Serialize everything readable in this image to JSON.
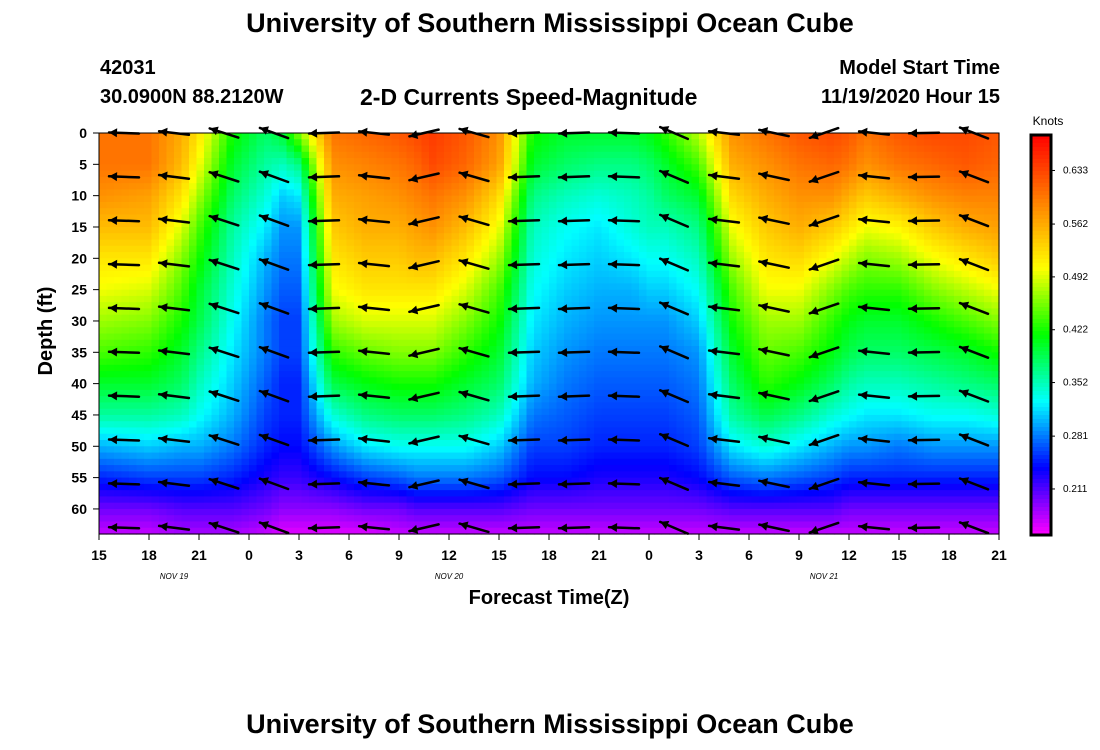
{
  "header": {
    "title": "University of Southern Mississippi Ocean Cube",
    "station_id": "42031",
    "coordinates": "30.0900N 88.2120W",
    "chart_title": "2-D Currents Speed-Magnitude",
    "model_start_label": "Model Start Time",
    "model_start_value": "11/19/2020 Hour 15"
  },
  "footer": {
    "title": "University of Southern Mississippi Ocean Cube"
  },
  "colors": {
    "colormap": [
      "#ff00ff",
      "#0000ff",
      "#00ffff",
      "#00ff00",
      "#ffff00",
      "#ff8000",
      "#ff0000"
    ],
    "arrow": "#000000"
  },
  "chart_data": {
    "type": "heatmap",
    "xlabel": "Forecast Time(Z)",
    "ylabel": "Depth (ft)",
    "colorbar_label": "Knots",
    "colorbar_ticks": [
      "0.633",
      "0.562",
      "0.492",
      "0.422",
      "0.352",
      "0.281",
      "0.211"
    ],
    "colorbar_range": [
      0.15,
      0.68
    ],
    "x_range": [
      0,
      54
    ],
    "x_tick_labels": [
      "15",
      "18",
      "21",
      "0",
      "3",
      "6",
      "9",
      "12",
      "15",
      "18",
      "21",
      "0",
      "3",
      "6",
      "9",
      "12",
      "15",
      "18",
      "21"
    ],
    "date_labels": [
      {
        "text": "NOV 19",
        "hour": 4.5
      },
      {
        "text": "NOV 20",
        "hour": 21
      },
      {
        "text": "NOV 21",
        "hour": 43.5
      }
    ],
    "y_range": [
      0,
      64
    ],
    "y_ticks": [
      0,
      5,
      10,
      15,
      20,
      25,
      30,
      35,
      40,
      45,
      50,
      55,
      60
    ],
    "depths_ft": [
      0,
      5,
      10,
      15,
      20,
      25,
      30,
      35,
      40,
      45,
      50,
      55,
      60,
      64
    ],
    "times_hr": [
      0,
      3,
      5,
      6,
      8,
      10,
      11,
      12,
      14,
      16,
      18,
      19,
      20,
      22,
      24,
      26,
      28,
      30,
      32,
      33,
      34,
      36,
      38,
      40,
      42,
      44,
      45,
      46,
      48,
      50,
      52,
      54
    ],
    "speed_knots": [
      [
        0.6,
        0.6,
        0.58,
        0.55,
        0.52,
        0.5,
        0.47,
        0.44,
        0.4,
        0.36,
        0.3,
        0.25,
        0.2,
        0.17
      ],
      [
        0.6,
        0.6,
        0.57,
        0.55,
        0.52,
        0.49,
        0.46,
        0.43,
        0.4,
        0.36,
        0.31,
        0.26,
        0.2,
        0.17
      ],
      [
        0.56,
        0.55,
        0.52,
        0.49,
        0.46,
        0.44,
        0.42,
        0.4,
        0.38,
        0.35,
        0.3,
        0.26,
        0.21,
        0.18
      ],
      [
        0.52,
        0.5,
        0.47,
        0.44,
        0.42,
        0.4,
        0.39,
        0.37,
        0.35,
        0.33,
        0.3,
        0.26,
        0.21,
        0.18
      ],
      [
        0.42,
        0.4,
        0.38,
        0.36,
        0.35,
        0.34,
        0.33,
        0.32,
        0.31,
        0.3,
        0.28,
        0.25,
        0.21,
        0.18
      ],
      [
        0.38,
        0.36,
        0.34,
        0.32,
        0.3,
        0.29,
        0.28,
        0.28,
        0.27,
        0.26,
        0.25,
        0.23,
        0.2,
        0.17
      ],
      [
        0.4,
        0.35,
        0.31,
        0.29,
        0.28,
        0.27,
        0.26,
        0.26,
        0.25,
        0.25,
        0.24,
        0.22,
        0.19,
        0.16
      ],
      [
        0.46,
        0.37,
        0.32,
        0.29,
        0.28,
        0.27,
        0.26,
        0.26,
        0.25,
        0.25,
        0.24,
        0.22,
        0.19,
        0.16
      ],
      [
        0.6,
        0.58,
        0.56,
        0.54,
        0.52,
        0.5,
        0.47,
        0.43,
        0.39,
        0.34,
        0.29,
        0.24,
        0.19,
        0.16
      ],
      [
        0.61,
        0.59,
        0.57,
        0.56,
        0.54,
        0.52,
        0.49,
        0.45,
        0.41,
        0.37,
        0.32,
        0.26,
        0.2,
        0.16
      ],
      [
        0.62,
        0.6,
        0.58,
        0.56,
        0.54,
        0.52,
        0.49,
        0.46,
        0.42,
        0.38,
        0.33,
        0.27,
        0.2,
        0.17
      ],
      [
        0.63,
        0.61,
        0.59,
        0.57,
        0.55,
        0.52,
        0.49,
        0.46,
        0.42,
        0.38,
        0.33,
        0.28,
        0.21,
        0.17
      ],
      [
        0.64,
        0.63,
        0.6,
        0.58,
        0.55,
        0.52,
        0.49,
        0.46,
        0.42,
        0.38,
        0.33,
        0.28,
        0.21,
        0.17
      ],
      [
        0.62,
        0.61,
        0.58,
        0.55,
        0.52,
        0.49,
        0.46,
        0.43,
        0.4,
        0.37,
        0.33,
        0.28,
        0.21,
        0.17
      ],
      [
        0.58,
        0.57,
        0.53,
        0.5,
        0.47,
        0.44,
        0.42,
        0.4,
        0.38,
        0.35,
        0.31,
        0.27,
        0.21,
        0.17
      ],
      [
        0.42,
        0.4,
        0.37,
        0.35,
        0.34,
        0.33,
        0.32,
        0.31,
        0.3,
        0.28,
        0.26,
        0.24,
        0.2,
        0.17
      ],
      [
        0.4,
        0.38,
        0.35,
        0.33,
        0.32,
        0.31,
        0.3,
        0.29,
        0.28,
        0.27,
        0.26,
        0.24,
        0.2,
        0.17
      ],
      [
        0.4,
        0.37,
        0.34,
        0.32,
        0.31,
        0.3,
        0.29,
        0.28,
        0.27,
        0.26,
        0.25,
        0.23,
        0.2,
        0.17
      ],
      [
        0.4,
        0.37,
        0.35,
        0.34,
        0.32,
        0.3,
        0.29,
        0.28,
        0.27,
        0.26,
        0.25,
        0.23,
        0.2,
        0.17
      ],
      [
        0.41,
        0.38,
        0.36,
        0.35,
        0.33,
        0.31,
        0.29,
        0.28,
        0.27,
        0.26,
        0.25,
        0.23,
        0.2,
        0.17
      ],
      [
        0.43,
        0.4,
        0.38,
        0.35,
        0.33,
        0.31,
        0.29,
        0.28,
        0.27,
        0.26,
        0.25,
        0.23,
        0.2,
        0.17
      ],
      [
        0.48,
        0.44,
        0.4,
        0.37,
        0.35,
        0.33,
        0.31,
        0.29,
        0.28,
        0.27,
        0.26,
        0.24,
        0.2,
        0.17
      ],
      [
        0.58,
        0.56,
        0.53,
        0.5,
        0.47,
        0.44,
        0.42,
        0.4,
        0.38,
        0.36,
        0.32,
        0.27,
        0.21,
        0.17
      ],
      [
        0.6,
        0.58,
        0.56,
        0.54,
        0.52,
        0.5,
        0.47,
        0.45,
        0.43,
        0.39,
        0.34,
        0.28,
        0.21,
        0.17
      ],
      [
        0.62,
        0.6,
        0.58,
        0.56,
        0.53,
        0.5,
        0.47,
        0.44,
        0.41,
        0.37,
        0.32,
        0.27,
        0.21,
        0.17
      ],
      [
        0.63,
        0.61,
        0.58,
        0.54,
        0.5,
        0.46,
        0.43,
        0.41,
        0.38,
        0.34,
        0.3,
        0.26,
        0.21,
        0.17
      ],
      [
        0.62,
        0.6,
        0.56,
        0.52,
        0.48,
        0.44,
        0.41,
        0.39,
        0.36,
        0.33,
        0.29,
        0.25,
        0.2,
        0.17
      ],
      [
        0.6,
        0.58,
        0.54,
        0.5,
        0.46,
        0.43,
        0.4,
        0.38,
        0.35,
        0.32,
        0.29,
        0.25,
        0.2,
        0.17
      ],
      [
        0.62,
        0.6,
        0.56,
        0.51,
        0.47,
        0.43,
        0.4,
        0.38,
        0.35,
        0.32,
        0.28,
        0.25,
        0.2,
        0.17
      ],
      [
        0.63,
        0.61,
        0.58,
        0.54,
        0.5,
        0.46,
        0.42,
        0.39,
        0.36,
        0.33,
        0.29,
        0.25,
        0.2,
        0.17
      ],
      [
        0.63,
        0.62,
        0.59,
        0.56,
        0.52,
        0.48,
        0.44,
        0.4,
        0.37,
        0.33,
        0.29,
        0.25,
        0.2,
        0.17
      ],
      [
        0.62,
        0.61,
        0.59,
        0.57,
        0.54,
        0.5,
        0.46,
        0.42,
        0.38,
        0.34,
        0.29,
        0.25,
        0.2,
        0.17
      ]
    ],
    "vector_times_hr": [
      1.5,
      4.5,
      7.5,
      10.5,
      13.5,
      16.5,
      19.5,
      22.5,
      25.5,
      28.5,
      31.5,
      34.5,
      37.5,
      40.5,
      43.5,
      46.5,
      49.5,
      52.5
    ],
    "vector_depths_ft": [
      0,
      7,
      14,
      21,
      28,
      35,
      42,
      49,
      56,
      63
    ],
    "vector_direction_deg": [
      272,
      277,
      288,
      290,
      268,
      276,
      257,
      286,
      268,
      268,
      272,
      293,
      277,
      282,
      251,
      276,
      269,
      291
    ],
    "grid": false
  }
}
